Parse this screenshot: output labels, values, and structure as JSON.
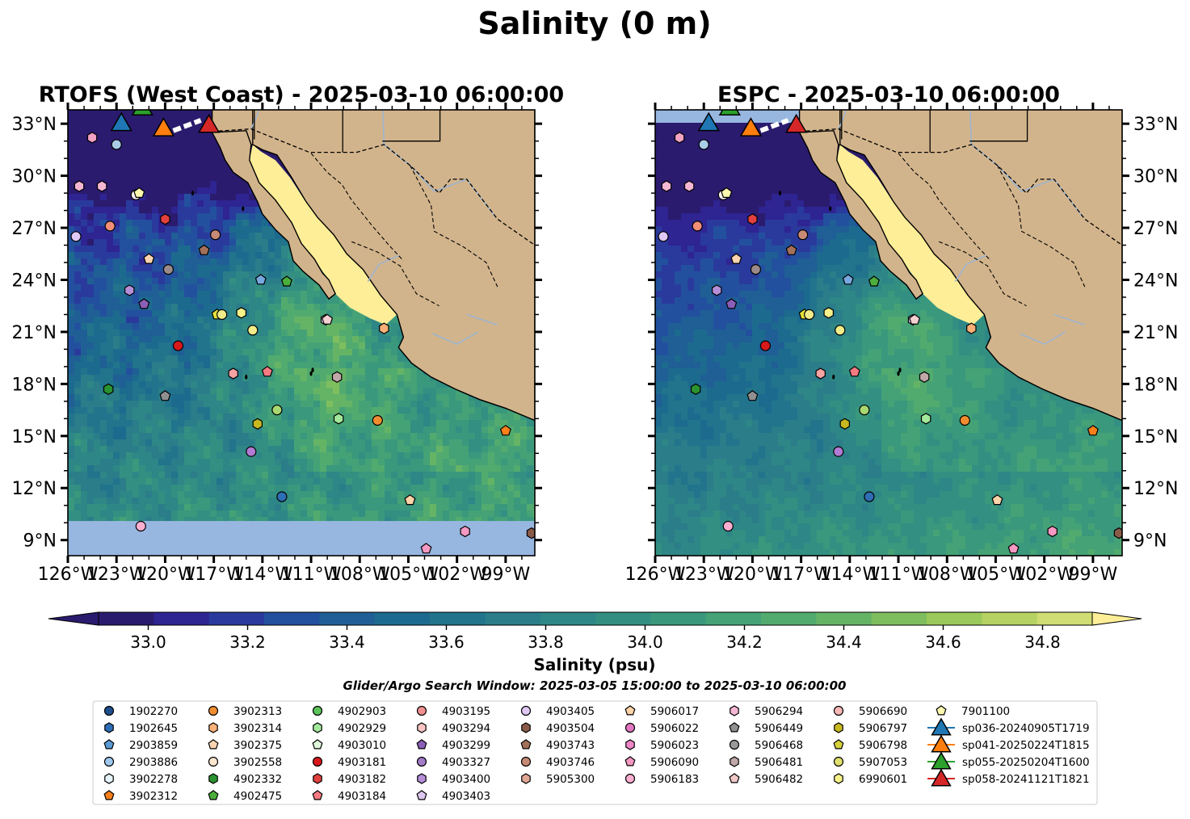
{
  "title": "Salinity (0 m)",
  "panels": [
    {
      "title": "RTOFS (West Coast) - 2025-03-10 06:00:00",
      "kind": "rtofs"
    },
    {
      "title": "ESPC - 2025-03-10 06:00:00",
      "kind": "espc"
    }
  ],
  "colorbar": {
    "label": "Salinity (psu)",
    "ticks": [
      "33.0",
      "33.2",
      "33.4",
      "33.6",
      "33.8",
      "34.0",
      "34.2",
      "34.4",
      "34.6",
      "34.8"
    ],
    "tick_values": [
      33.0,
      33.2,
      33.4,
      33.6,
      33.8,
      34.0,
      34.2,
      34.4,
      34.6,
      34.8
    ],
    "range": [
      32.9,
      34.9
    ],
    "extend": "both",
    "colors": [
      "#2b1b6e",
      "#2e2492",
      "#2a3a9c",
      "#23509e",
      "#1f5f95",
      "#1d6a8f",
      "#21748c",
      "#2a7d89",
      "#2e8686",
      "#338f82",
      "#3a987d",
      "#45a276",
      "#52ab6e",
      "#65b466",
      "#7fbe5e",
      "#9bc95b",
      "#b5d262",
      "#cfdd74"
    ],
    "over_color": "#fdee97",
    "under_color": "#2b1b6e"
  },
  "subtitle": "Glider/Argo Search Window: 2025-03-05 15:00:00 to 2025-03-10 06:00:00",
  "chart_data": {
    "type": "map",
    "x_ticks": [
      "126°W",
      "123°W",
      "120°W",
      "117°W",
      "114°W",
      "111°W",
      "108°W",
      "105°W",
      "102°W",
      "99°W"
    ],
    "x_tick_values": [
      -126,
      -123,
      -120,
      -117,
      -114,
      -111,
      -108,
      -105,
      -102,
      -99
    ],
    "y_ticks": [
      "9°N",
      "12°N",
      "15°N",
      "18°N",
      "21°N",
      "24°N",
      "27°N",
      "30°N",
      "33°N"
    ],
    "y_tick_values": [
      9,
      12,
      15,
      18,
      21,
      24,
      27,
      30,
      33
    ],
    "xlim": [
      -126,
      -97.2
    ],
    "ylim": [
      8.1,
      33.8
    ],
    "floats": [
      {
        "id": "1902645",
        "lon": -124.5,
        "lat": 32.2,
        "marker": "hexagon",
        "color": "#f2a2c3"
      },
      {
        "id": "2903886",
        "lon": -123.0,
        "lat": 31.8,
        "marker": "circle",
        "color": "#a9cde8"
      },
      {
        "id": "5906294",
        "lon": -125.3,
        "lat": 29.4,
        "marker": "hexagon",
        "color": "#f4b7d3"
      },
      {
        "id": "5906294b",
        "lon": -123.9,
        "lat": 29.4,
        "marker": "hexagon",
        "color": "#f4b7d3"
      },
      {
        "id": "3902278",
        "lon": -121.8,
        "lat": 28.9,
        "marker": "circle",
        "color": "#f4eeee"
      },
      {
        "id": "7901100",
        "lon": -121.6,
        "lat": 29.0,
        "marker": "pentagon",
        "color": "#fffab0"
      },
      {
        "id": "4903405",
        "lon": -125.5,
        "lat": 26.5,
        "marker": "circle",
        "color": "#e0c8f5"
      },
      {
        "id": "3902313",
        "lon": -123.4,
        "lat": 27.1,
        "marker": "circle",
        "color": "#f28e78"
      },
      {
        "id": "4903182",
        "lon": -120.0,
        "lat": 27.5,
        "marker": "hexagon",
        "color": "#e0403e"
      },
      {
        "id": "5906690",
        "lon": -116.9,
        "lat": 26.6,
        "marker": "circle",
        "color": "#c78a76"
      },
      {
        "id": "4903743",
        "lon": -117.6,
        "lat": 25.7,
        "marker": "pentagon",
        "color": "#a3705a"
      },
      {
        "id": "3902375",
        "lon": -121.0,
        "lat": 25.2,
        "marker": "pentagon",
        "color": "#fcd3b0"
      },
      {
        "id": "5906468",
        "lon": -119.8,
        "lat": 24.6,
        "marker": "circle",
        "color": "#9a8a8a"
      },
      {
        "id": "2903859",
        "lon": -114.1,
        "lat": 24.0,
        "marker": "pentagon",
        "color": "#79a8e0"
      },
      {
        "id": "4902475",
        "lon": -112.5,
        "lat": 23.9,
        "marker": "pentagon",
        "color": "#4caf3c"
      },
      {
        "id": "4903400",
        "lon": -122.2,
        "lat": 23.4,
        "marker": "hexagon",
        "color": "#b58ed8"
      },
      {
        "id": "4903299",
        "lon": -121.3,
        "lat": 22.6,
        "marker": "pentagon",
        "color": "#8b5fb8"
      },
      {
        "id": "5906798",
        "lon": -116.8,
        "lat": 22.0,
        "marker": "pentagon",
        "color": "#e5e03c"
      },
      {
        "id": "5907053",
        "lon": -116.5,
        "lat": 22.0,
        "marker": "circle",
        "color": "#f0ec8a"
      },
      {
        "id": "6990601",
        "lon": -115.3,
        "lat": 22.1,
        "marker": "hexagon",
        "color": "#f6f28a"
      },
      {
        "id": "4903403",
        "lon": -110.1,
        "lat": 21.7,
        "marker": "hexagon",
        "color": "#e8d0f2"
      },
      {
        "id": "5906482",
        "lon": -110.0,
        "lat": 21.7,
        "marker": "pentagon",
        "color": "#f5d0d3"
      },
      {
        "id": "5907053b",
        "lon": -114.6,
        "lat": 21.1,
        "marker": "circle",
        "color": "#f0ec8a"
      },
      {
        "id": "3902314",
        "lon": -106.5,
        "lat": 21.2,
        "marker": "hexagon",
        "color": "#f8b078"
      },
      {
        "id": "4903181",
        "lon": -119.2,
        "lat": 20.2,
        "marker": "circle",
        "color": "#d7191c"
      },
      {
        "id": "4903184",
        "lon": -113.7,
        "lat": 18.7,
        "marker": "pentagon",
        "color": "#f57a82"
      },
      {
        "id": "5906023",
        "lon": -115.8,
        "lat": 18.6,
        "marker": "hexagon",
        "color": "#f7a3a3"
      },
      {
        "id": "5906481",
        "lon": -109.4,
        "lat": 18.4,
        "marker": "hexagon",
        "color": "#c0a8a8"
      },
      {
        "id": "4902332",
        "lon": -123.5,
        "lat": 17.7,
        "marker": "hexagon",
        "color": "#2a9330"
      },
      {
        "id": "5906449",
        "lon": -120.0,
        "lat": 17.3,
        "marker": "pentagon",
        "color": "#909090"
      },
      {
        "id": "4902929",
        "lon": -109.3,
        "lat": 16.0,
        "marker": "hexagon",
        "color": "#a3e89a"
      },
      {
        "id": "5907053c",
        "lon": -113.1,
        "lat": 16.5,
        "marker": "circle",
        "color": "#a8d870"
      },
      {
        "id": "5906797",
        "lon": -114.3,
        "lat": 15.7,
        "marker": "hexagon",
        "color": "#c7b820"
      },
      {
        "id": "3902313b",
        "lon": -106.9,
        "lat": 15.9,
        "marker": "circle",
        "color": "#f08c30"
      },
      {
        "id": "3902312",
        "lon": -99.0,
        "lat": 15.3,
        "marker": "pentagon",
        "color": "#f97f1a"
      },
      {
        "id": "4903327",
        "lon": -114.7,
        "lat": 14.1,
        "marker": "circle",
        "color": "#b27ad3"
      },
      {
        "id": "1902645b",
        "lon": -112.8,
        "lat": 11.5,
        "marker": "circle",
        "color": "#2e6eb5"
      },
      {
        "id": "5906017",
        "lon": -104.9,
        "lat": 11.3,
        "marker": "pentagon",
        "color": "#fdd3a8"
      },
      {
        "id": "5906183",
        "lon": -121.5,
        "lat": 9.8,
        "marker": "circle",
        "color": "#fcaed1"
      },
      {
        "id": "5906090",
        "lon": -101.5,
        "lat": 9.5,
        "marker": "hexagon",
        "color": "#f598c2"
      },
      {
        "id": "4903743b",
        "lon": -97.4,
        "lat": 9.4,
        "marker": "hexagon",
        "color": "#8a5a48"
      },
      {
        "id": "5906090b",
        "lon": -103.9,
        "lat": 8.5,
        "marker": "pentagon",
        "color": "#f598c2"
      }
    ],
    "gliders": [
      {
        "id": "sp036-20240905T1719",
        "lon": -122.7,
        "lat": 33.0,
        "color": "#1f77b4"
      },
      {
        "id": "sp041-20250224T1815",
        "lon": -120.1,
        "lat": 32.7,
        "color": "#ff7f0e"
      },
      {
        "id": "sp055-20250204T1600",
        "lon": -121.4,
        "lat": 33.9,
        "color": "#2ca02c"
      },
      {
        "id": "sp058-20241121T1821",
        "lon": -117.3,
        "lat": 32.9,
        "color": "#d62728"
      }
    ]
  },
  "legend": {
    "columns": [
      [
        {
          "label": "1902270",
          "marker": "circle",
          "color": "#1f4e8c"
        },
        {
          "label": "1902645",
          "marker": "hexagon",
          "color": "#2e6eb5"
        },
        {
          "label": "2903859",
          "marker": "pentagon",
          "color": "#5b9bd5"
        },
        {
          "label": "2903886",
          "marker": "circle",
          "color": "#9fc8ec"
        },
        {
          "label": "3902278",
          "marker": "hexagon",
          "color": "#e6f4fb"
        },
        {
          "label": "3902312",
          "marker": "pentagon",
          "color": "#f97f1a"
        }
      ],
      [
        {
          "label": "3902313",
          "marker": "circle",
          "color": "#f08c30"
        },
        {
          "label": "3902314",
          "marker": "hexagon",
          "color": "#f8b078"
        },
        {
          "label": "3902375",
          "marker": "pentagon",
          "color": "#fcd3b0"
        },
        {
          "label": "3902558",
          "marker": "circle",
          "color": "#fde6d0"
        },
        {
          "label": "4902332",
          "marker": "hexagon",
          "color": "#2a9330"
        },
        {
          "label": "4902475",
          "marker": "pentagon",
          "color": "#4caf3c"
        }
      ],
      [
        {
          "label": "4902903",
          "marker": "circle",
          "color": "#5cc45a"
        },
        {
          "label": "4902929",
          "marker": "hexagon",
          "color": "#a3e89a"
        },
        {
          "label": "4903010",
          "marker": "pentagon",
          "color": "#dff7db"
        },
        {
          "label": "4903181",
          "marker": "circle",
          "color": "#d7191c"
        },
        {
          "label": "4903182",
          "marker": "hexagon",
          "color": "#e0403e"
        },
        {
          "label": "4903184",
          "marker": "pentagon",
          "color": "#f57a82"
        }
      ],
      [
        {
          "label": "4903195",
          "marker": "circle",
          "color": "#f29090"
        },
        {
          "label": "4903294",
          "marker": "hexagon",
          "color": "#fbc4c4"
        },
        {
          "label": "4903299",
          "marker": "pentagon",
          "color": "#8b5fb8"
        },
        {
          "label": "4903327",
          "marker": "circle",
          "color": "#a47cc9"
        },
        {
          "label": "4903400",
          "marker": "hexagon",
          "color": "#b58ed8"
        },
        {
          "label": "4903403",
          "marker": "pentagon",
          "color": "#dcc8f0"
        }
      ],
      [
        {
          "label": "4903405",
          "marker": "circle",
          "color": "#e0c8f5"
        },
        {
          "label": "4903504",
          "marker": "hexagon",
          "color": "#8a5a48"
        },
        {
          "label": "4903743",
          "marker": "pentagon",
          "color": "#a3705a"
        },
        {
          "label": "4903746",
          "marker": "circle",
          "color": "#c78a76"
        },
        {
          "label": "5905300",
          "marker": "hexagon",
          "color": "#e0a894"
        }
      ],
      [
        {
          "label": "5906017",
          "marker": "pentagon",
          "color": "#fdd3a8"
        },
        {
          "label": "5906022",
          "marker": "circle",
          "color": "#e377c2"
        },
        {
          "label": "5906023",
          "marker": "hexagon",
          "color": "#ee86c8"
        },
        {
          "label": "5906090",
          "marker": "pentagon",
          "color": "#f598c2"
        },
        {
          "label": "5906183",
          "marker": "circle",
          "color": "#fcaed1"
        }
      ],
      [
        {
          "label": "5906294",
          "marker": "hexagon",
          "color": "#f4b7d3"
        },
        {
          "label": "5906449",
          "marker": "pentagon",
          "color": "#909090"
        },
        {
          "label": "5906468",
          "marker": "circle",
          "color": "#9a9a9a"
        },
        {
          "label": "5906481",
          "marker": "hexagon",
          "color": "#c0a8a8"
        },
        {
          "label": "5906482",
          "marker": "pentagon",
          "color": "#f0c8c8"
        }
      ],
      [
        {
          "label": "5906690",
          "marker": "circle",
          "color": "#f7b8b8"
        },
        {
          "label": "5906797",
          "marker": "hexagon",
          "color": "#c7b820"
        },
        {
          "label": "5906798",
          "marker": "pentagon",
          "color": "#d6d03a"
        },
        {
          "label": "5907053",
          "marker": "circle",
          "color": "#e0e070"
        },
        {
          "label": "6990601",
          "marker": "hexagon",
          "color": "#f6f28a"
        }
      ],
      [
        {
          "label": "7901100",
          "marker": "pentagon",
          "color": "#fffab0"
        },
        {
          "label": "sp036-20240905T1719",
          "marker": "triangle",
          "color": "#1f77b4"
        },
        {
          "label": "sp041-20250224T1815",
          "marker": "triangle",
          "color": "#ff7f0e"
        },
        {
          "label": "sp055-20250204T1600",
          "marker": "triangle",
          "color": "#2ca02c"
        },
        {
          "label": "sp058-20241121T1821",
          "marker": "triangle",
          "color": "#d62728"
        }
      ]
    ]
  },
  "colors": {
    "land": "#d2b48c",
    "gulf": "#fdee97",
    "nodata": "#97b6e0",
    "rivers": "#9db5cf"
  }
}
